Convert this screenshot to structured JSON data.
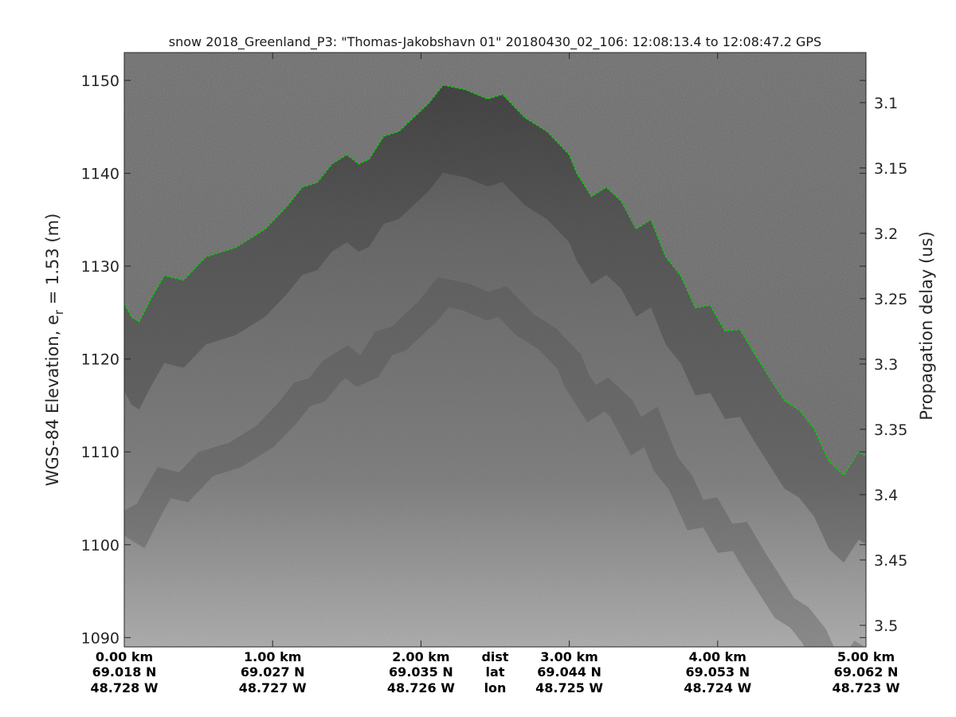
{
  "chart_data": {
    "type": "radargram",
    "title": "snow 2018_Greenland_P3: \"Thomas-Jakobshavn 01\"  20180430_02_106: 12:08:13.4 to 12:08:47.2 GPS",
    "ylabel": {
      "main": "WGS-84 Elevation, e",
      "sub": "r",
      "rest": " = 1.53 (m)"
    },
    "y2label": "Propagation delay (us)",
    "ylim": [
      1089,
      1153
    ],
    "y_ticks": [
      "1090",
      "1100",
      "1110",
      "1120",
      "1130",
      "1140",
      "1150"
    ],
    "y2lim": [
      3.0617,
      3.5165
    ],
    "y2_ticks": [
      "3.1",
      "3.15",
      "3.2",
      "3.25",
      "3.3",
      "3.35",
      "3.4",
      "3.45",
      "3.5"
    ],
    "xlim": [
      0,
      5
    ],
    "x_ticks": [
      {
        "dist": "0.00 km",
        "lat": "69.018 N",
        "lon": "48.728 W"
      },
      {
        "dist": "1.00 km",
        "lat": "69.027 N",
        "lon": "48.727 W"
      },
      {
        "dist": "2.00 km",
        "lat": "69.035 N",
        "lon": "48.726 W"
      },
      {
        "dist": "3.00 km",
        "lat": "69.044 N",
        "lon": "48.725 W"
      },
      {
        "dist": "4.00 km",
        "lat": "69.053 N",
        "lon": "48.724 W"
      },
      {
        "dist": "5.00 km",
        "lat": "69.062 N",
        "lon": "48.723 W"
      }
    ],
    "x_row_labels": [
      "dist",
      "lat",
      "lon"
    ],
    "surface_color": "#00d400",
    "colormap": "gray",
    "grid": false,
    "surface": {
      "x": [
        0,
        0.05,
        0.1,
        0.18,
        0.27,
        0.4,
        0.55,
        0.75,
        0.95,
        1.1,
        1.2,
        1.3,
        1.4,
        1.5,
        1.58,
        1.65,
        1.75,
        1.85,
        1.95,
        2.05,
        2.15,
        2.3,
        2.45,
        2.55,
        2.7,
        2.85,
        3.0,
        3.05,
        3.15,
        3.25,
        3.35,
        3.45,
        3.55,
        3.65,
        3.75,
        3.85,
        3.95,
        4.05,
        4.15,
        4.25,
        4.35,
        4.45,
        4.55,
        4.65,
        4.75,
        4.85,
        4.95,
        5.0
      ],
      "y": [
        1126,
        1124.5,
        1124,
        1126.5,
        1129,
        1128.5,
        1131,
        1132,
        1134,
        1136.5,
        1138.5,
        1139,
        1141,
        1142,
        1141,
        1141.5,
        1144,
        1144.5,
        1146,
        1147.5,
        1149.5,
        1149,
        1148,
        1148.5,
        1146,
        1144.5,
        1142,
        1140,
        1137.5,
        1138.5,
        1137,
        1134,
        1135,
        1131,
        1129,
        1125.5,
        1125.8,
        1123,
        1123.2,
        1120.5,
        1118,
        1115.5,
        1114.5,
        1112.5,
        1109,
        1107.5,
        1110,
        1109.5
      ]
    }
  }
}
